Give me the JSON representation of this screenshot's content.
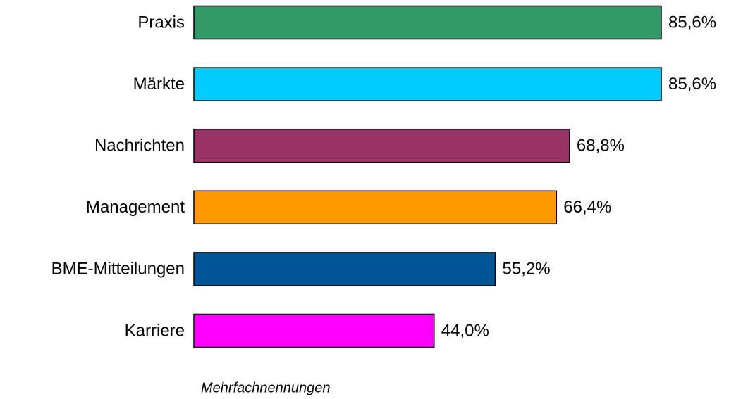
{
  "chart_data": {
    "type": "bar",
    "orientation": "horizontal",
    "categories": [
      "Praxis",
      "Märkte",
      "Nachrichten",
      "Management",
      "BME-Mitteilungen",
      "Karriere"
    ],
    "values": [
      85.6,
      85.6,
      68.8,
      66.4,
      55.2,
      44.0
    ],
    "value_labels": [
      "85,6%",
      "85,6%",
      "68,8%",
      "66,4%",
      "55,2%",
      "44,0%"
    ],
    "colors": [
      "#339966",
      "#00ccff",
      "#993366",
      "#ff9900",
      "#005596",
      "#ff00ff"
    ],
    "note": "Mehrfachnennungen"
  }
}
